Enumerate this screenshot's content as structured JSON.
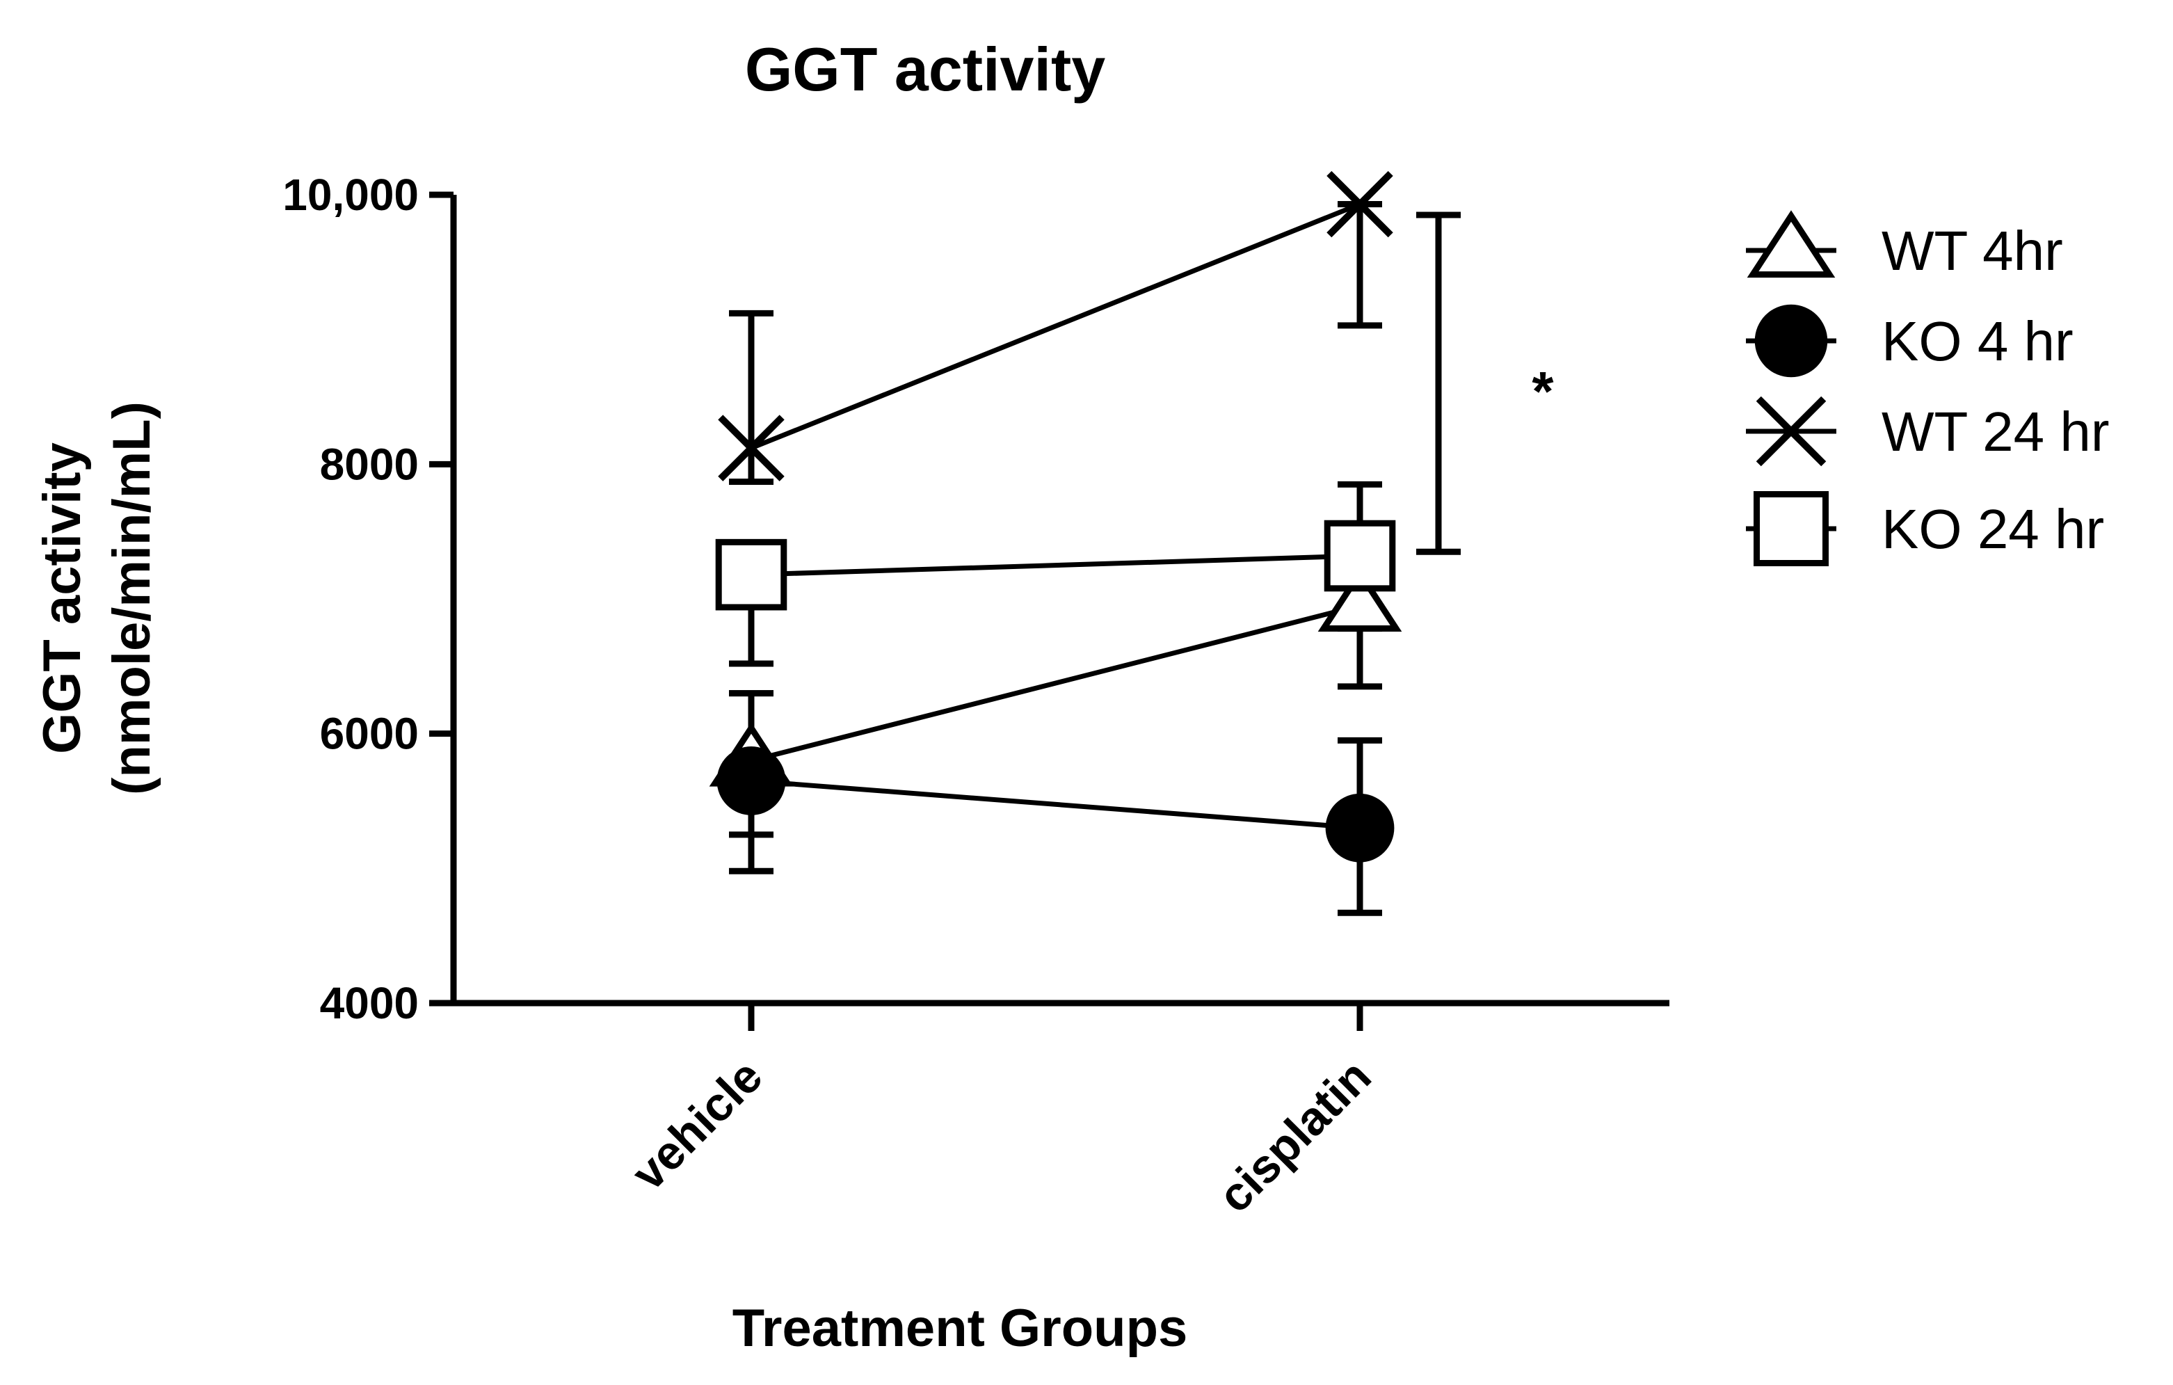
{
  "chart_data": {
    "type": "line",
    "title": "GGT activity",
    "xlabel": "Treatment Groups",
    "ylabel_line1": "GGT activity",
    "ylabel_line2": "(nmole/min/mL)",
    "categories": [
      "vehicle",
      "cisplatin"
    ],
    "ylim": [
      4000,
      10000
    ],
    "yticks": [
      4000,
      6000,
      8000,
      10000
    ],
    "ytick_labels": [
      "4000",
      "6000",
      "8000",
      "10,000"
    ],
    "grid": false,
    "legend_position": "right",
    "series": [
      {
        "name": "WT 4hr",
        "marker": "triangle-open",
        "values": [
          5800,
          6950
        ],
        "err_low": [
          5250,
          6350
        ],
        "err_high": [
          6300,
          7500
        ]
      },
      {
        "name": "KO 4 hr",
        "marker": "circle-filled",
        "values": [
          5650,
          5300
        ],
        "err_low": [
          4980,
          4670
        ],
        "err_high": [
          6300,
          5950
        ]
      },
      {
        "name": "WT 24 hr",
        "marker": "x",
        "values": [
          8120,
          9930
        ],
        "err_low": [
          7870,
          9030
        ],
        "err_high": [
          9120,
          9930
        ]
      },
      {
        "name": "KO 24 hr",
        "marker": "square-open",
        "values": [
          7180,
          7320
        ],
        "err_low": [
          6520,
          6780
        ],
        "err_high": [
          7180,
          7850
        ]
      }
    ],
    "significance": {
      "label": "*",
      "low": 7350,
      "high": 9850,
      "position": "right of cisplatin"
    }
  }
}
